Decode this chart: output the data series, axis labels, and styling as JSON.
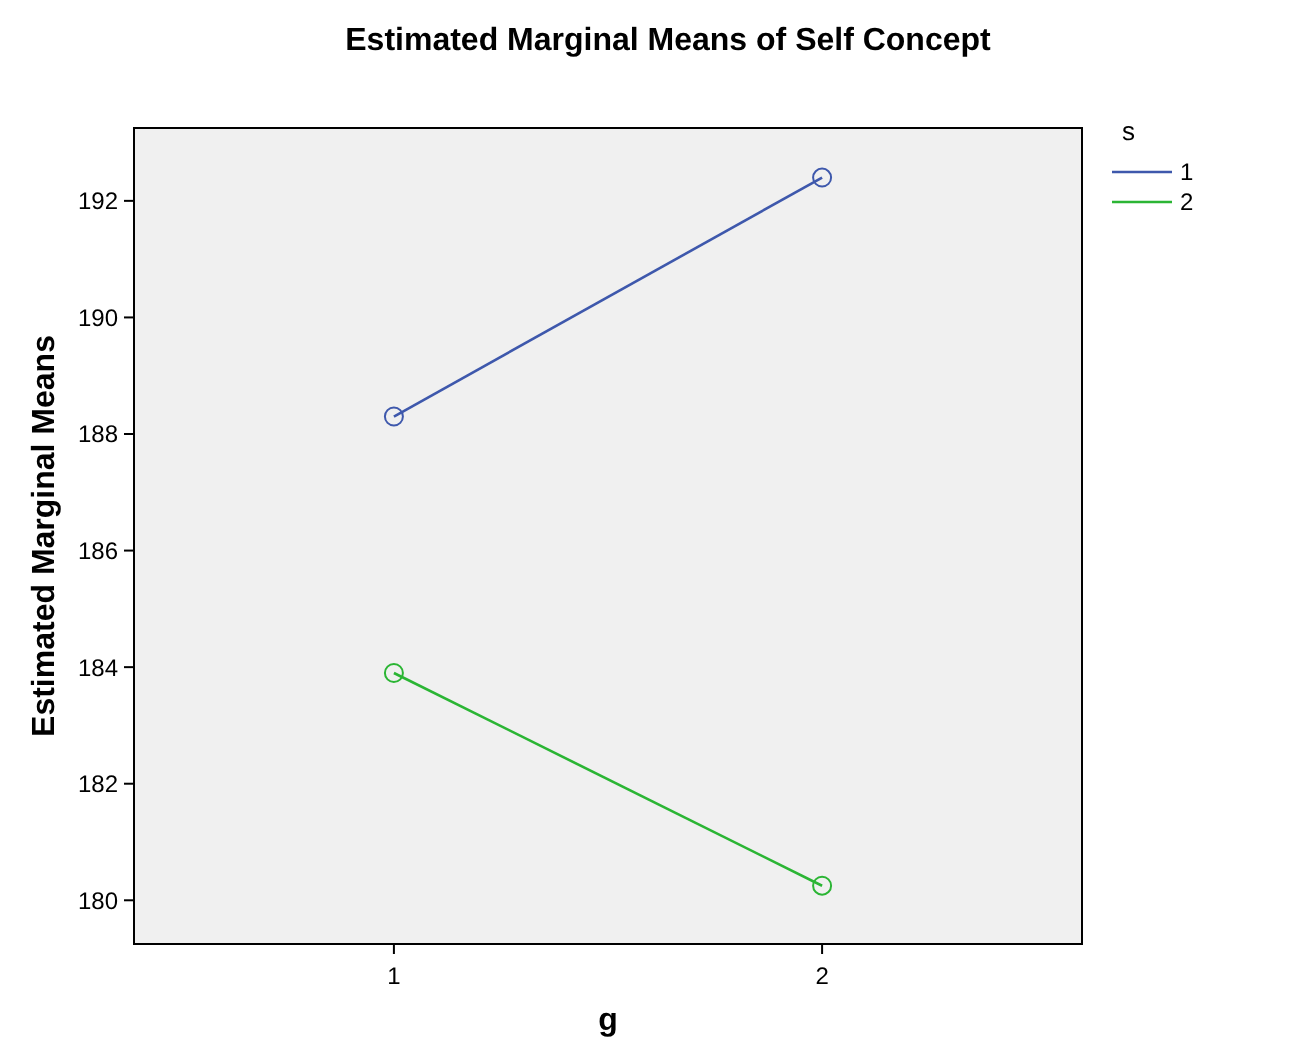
{
  "chart_data": {
    "type": "line",
    "title": "Estimated Marginal Means of Self Concept",
    "xlabel": "g",
    "ylabel": "Estimated Marginal Means",
    "legend_title": "s",
    "categories": [
      "1",
      "2"
    ],
    "series": [
      {
        "name": "1",
        "color": "#3e58ac",
        "values": [
          188.3,
          192.4
        ]
      },
      {
        "name": "2",
        "color": "#2bb534",
        "values": [
          183.9,
          180.25
        ]
      }
    ],
    "ylim": [
      179.25,
      193.25
    ],
    "yticks": [
      180,
      182,
      184,
      186,
      188,
      190,
      192
    ],
    "grid": false,
    "legend": "top right",
    "marker": "circle",
    "line_style": "solid"
  }
}
